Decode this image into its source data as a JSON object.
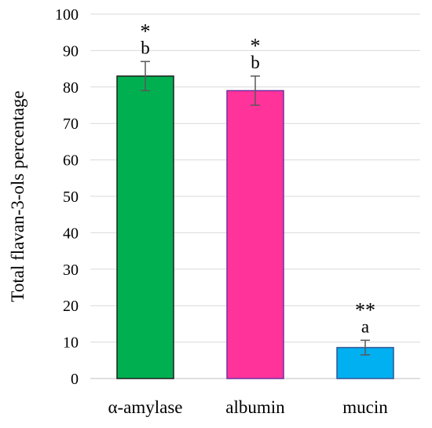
{
  "chart_data": {
    "type": "bar",
    "ylabel": "Total flavan-3-ols percentage",
    "xlabel": "",
    "ylim": [
      0,
      100
    ],
    "yticks": [
      0,
      10,
      20,
      30,
      40,
      50,
      60,
      70,
      80,
      90,
      100
    ],
    "grid": true,
    "categories": [
      "α-amylase",
      "albumin",
      "mucin"
    ],
    "values": [
      83,
      79,
      8.5
    ],
    "errors": [
      4,
      4,
      2
    ],
    "letters": [
      "b",
      "b",
      "a"
    ],
    "stars": [
      "*",
      "*",
      "**"
    ],
    "colors": [
      "#00b050",
      "#ff3399",
      "#00b0f0"
    ],
    "edge_colors": [
      "#1f1f1f",
      "#7030a0",
      "#2f5597"
    ]
  }
}
